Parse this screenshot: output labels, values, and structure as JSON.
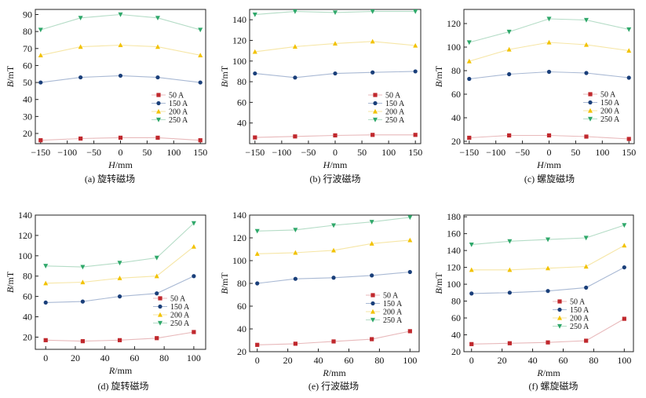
{
  "colors": {
    "s50": "#c0282d",
    "s150": "#1a3f7a",
    "s200": "#f2c200",
    "s250": "#2fa86a",
    "l50": "#e8b9bb",
    "l150": "#a9b9d4",
    "l200": "#f6e6a6",
    "l250": "#b4dcc6"
  },
  "chart_data": [
    {
      "type": "line",
      "caption": "(a) 旋转磁场",
      "xlabel": "H/mm",
      "ylabel": "B/mT",
      "x": [
        -150,
        -75,
        0,
        70,
        150
      ],
      "xticks": [
        -150,
        -100,
        -50,
        0,
        50,
        100,
        150
      ],
      "xlim": [
        -160,
        160
      ],
      "yticks": [
        20,
        30,
        40,
        50,
        60,
        70,
        80,
        90
      ],
      "ylim": [
        14,
        93
      ],
      "legend_position": "center-right",
      "series": [
        {
          "name": "50 A",
          "values": [
            16,
            17,
            17.5,
            17.5,
            16
          ]
        },
        {
          "name": "150 A",
          "values": [
            50,
            53,
            54,
            53,
            50
          ]
        },
        {
          "name": "200 A",
          "values": [
            66,
            71,
            72,
            71,
            66
          ]
        },
        {
          "name": "250 A",
          "values": [
            81,
            88,
            90,
            88,
            81
          ]
        }
      ]
    },
    {
      "type": "line",
      "caption": "(b) 行波磁场",
      "xlabel": "H/mm",
      "ylabel": "B/mT",
      "x": [
        -150,
        -75,
        0,
        70,
        150
      ],
      "xticks": [
        -150,
        -100,
        -50,
        0,
        50,
        100,
        150
      ],
      "xlim": [
        -160,
        160
      ],
      "yticks": [
        40,
        60,
        80,
        100,
        120,
        140
      ],
      "ylim": [
        20,
        150
      ],
      "legend_position": "center-right",
      "series": [
        {
          "name": "50 A",
          "values": [
            26,
            27,
            28,
            28.5,
            28.5
          ]
        },
        {
          "name": "150 A",
          "values": [
            88,
            84,
            88,
            89,
            90
          ]
        },
        {
          "name": "200 A",
          "values": [
            109,
            114,
            117,
            119,
            115
          ]
        },
        {
          "name": "250 A",
          "values": [
            145,
            148,
            147,
            148,
            148
          ]
        }
      ]
    },
    {
      "type": "line",
      "caption": "(c) 螺旋磁场",
      "xlabel": "H/mm",
      "ylabel": "B/mT",
      "x": [
        -150,
        -75,
        0,
        70,
        150
      ],
      "xticks": [
        -150,
        -100,
        -50,
        0,
        50,
        100,
        150
      ],
      "xlim": [
        -160,
        160
      ],
      "yticks": [
        20,
        40,
        60,
        80,
        100,
        120
      ],
      "ylim": [
        18,
        132
      ],
      "legend_position": "center-right",
      "series": [
        {
          "name": "50 A",
          "values": [
            23,
            25,
            25,
            24,
            22
          ]
        },
        {
          "name": "150 A",
          "values": [
            73,
            77,
            79,
            78,
            74
          ]
        },
        {
          "name": "200 A",
          "values": [
            88,
            98,
            104,
            102,
            97
          ]
        },
        {
          "name": "250 A",
          "values": [
            104,
            113,
            124,
            123,
            115
          ]
        }
      ]
    },
    {
      "type": "line",
      "caption": "(d) 旋转磁场",
      "xlabel": "R/mm",
      "ylabel": "B/mT",
      "x": [
        0,
        25,
        50,
        75,
        100
      ],
      "xticks": [
        0,
        20,
        40,
        60,
        80,
        100
      ],
      "xlim": [
        -7,
        108
      ],
      "yticks": [
        20,
        40,
        60,
        80,
        100,
        120,
        140
      ],
      "ylim": [
        8,
        140
      ],
      "legend_position": "center-right",
      "series": [
        {
          "name": "50 A",
          "values": [
            17,
            16,
            17,
            19,
            25
          ]
        },
        {
          "name": "150 A",
          "values": [
            54,
            55,
            60,
            63,
            80
          ]
        },
        {
          "name": "200 A",
          "values": [
            73,
            74,
            78,
            80,
            109
          ]
        },
        {
          "name": "250 A",
          "values": [
            90,
            89,
            93,
            98,
            132
          ]
        }
      ]
    },
    {
      "type": "line",
      "caption": "(e) 行波磁场",
      "xlabel": "R/mm",
      "ylabel": "B/mT",
      "x": [
        0,
        25,
        50,
        75,
        100
      ],
      "xticks": [
        0,
        20,
        40,
        60,
        80,
        100
      ],
      "xlim": [
        -5,
        106
      ],
      "yticks": [
        20,
        40,
        60,
        80,
        100,
        120,
        140
      ],
      "ylim": [
        20,
        140
      ],
      "legend_position": "bottom-right",
      "series": [
        {
          "name": "50 A",
          "values": [
            26,
            27,
            29,
            31,
            38
          ]
        },
        {
          "name": "150 A",
          "values": [
            80,
            84,
            85,
            87,
            90
          ]
        },
        {
          "name": "200 A",
          "values": [
            106,
            107,
            109,
            115,
            118
          ]
        },
        {
          "name": "250 A",
          "values": [
            126,
            127,
            131,
            134,
            138
          ]
        }
      ]
    },
    {
      "type": "line",
      "caption": "(f) 螺旋磁场",
      "xlabel": "R/mm",
      "ylabel": "B/mT",
      "x": [
        0,
        25,
        50,
        75,
        100
      ],
      "xticks": [
        0,
        20,
        40,
        60,
        80,
        100
      ],
      "xlim": [
        -5,
        106
      ],
      "yticks": [
        20,
        40,
        60,
        80,
        100,
        120,
        140,
        160,
        180
      ],
      "ylim": [
        20,
        182
      ],
      "legend_position": "center-right",
      "series": [
        {
          "name": "50 A",
          "values": [
            29,
            30,
            31,
            33,
            59
          ]
        },
        {
          "name": "150 A",
          "values": [
            89,
            90,
            92,
            96,
            120
          ]
        },
        {
          "name": "200 A",
          "values": [
            117,
            117,
            119,
            121,
            146
          ]
        },
        {
          "name": "250 A",
          "values": [
            147,
            151,
            153,
            155,
            170
          ]
        }
      ]
    }
  ]
}
